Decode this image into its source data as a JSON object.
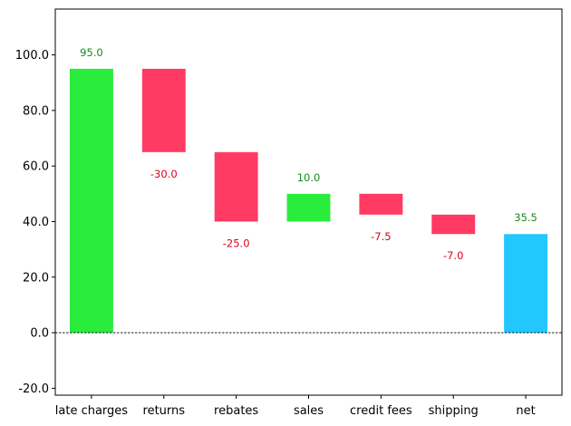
{
  "chart_data": {
    "type": "bar",
    "subtype": "waterfall",
    "title": "",
    "xlabel": "",
    "ylabel": "",
    "categories": [
      "late charges",
      "returns",
      "rebates",
      "sales",
      "credit fees",
      "shipping",
      "net"
    ],
    "values": [
      95.0,
      -30.0,
      -25.0,
      10.0,
      -7.5,
      -7.0,
      35.5
    ],
    "labels": [
      "95.0",
      "-30.0",
      "-25.0",
      "10.0",
      "-7.5",
      "-7.0",
      "35.5"
    ],
    "kinds": [
      "increase",
      "decrease",
      "decrease",
      "increase",
      "decrease",
      "decrease",
      "total"
    ],
    "ylim": [
      -22.5,
      116.5
    ],
    "yticks": [
      -20,
      0,
      20,
      40,
      60,
      80,
      100
    ],
    "ytick_labels": [
      "-20.0",
      "0.0",
      "20.0",
      "40.0",
      "60.0",
      "80.0",
      "100.0"
    ],
    "zero_line": true,
    "grid": false,
    "colors": {
      "increase": "#29ec3c",
      "decrease": "#ff3b63",
      "total": "#22c7ff",
      "increase_label": "#1a8a1a",
      "decrease_label": "#e0001a"
    }
  }
}
